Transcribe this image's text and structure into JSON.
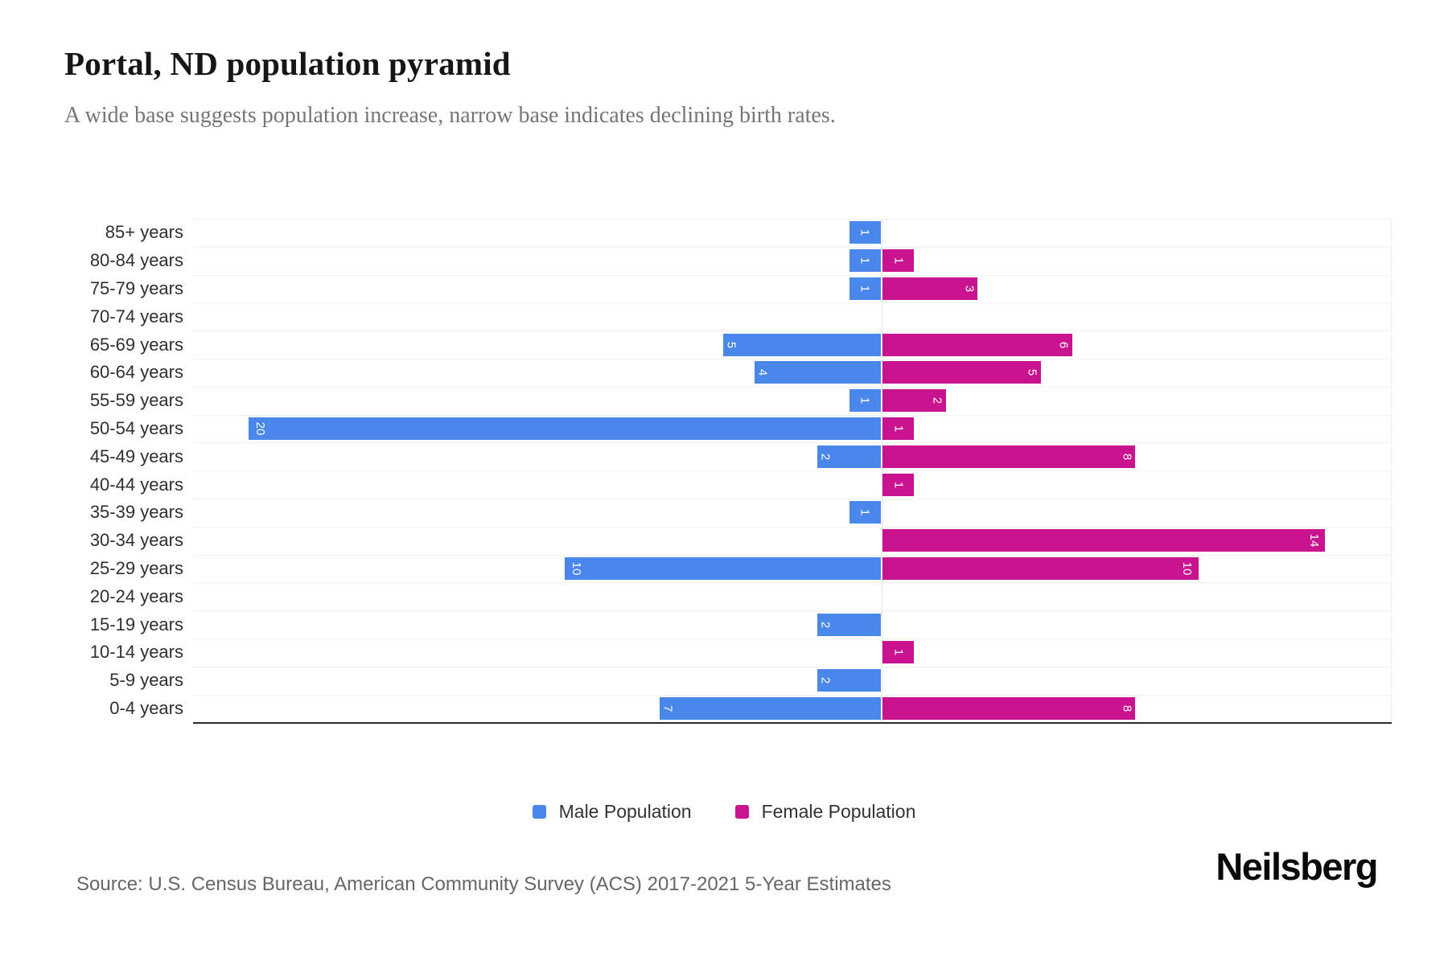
{
  "header": {
    "title": "Portal, ND population pyramid",
    "subtitle": "A wide base suggests population increase, narrow base indicates declining birth rates."
  },
  "chart_data": {
    "type": "bar",
    "variant": "population-pyramid",
    "orientation": "horizontal",
    "title": "Portal, ND population pyramid",
    "categories": [
      "85+ years",
      "80-84 years",
      "75-79 years",
      "70-74 years",
      "65-69 years",
      "60-64 years",
      "55-59 years",
      "50-54 years",
      "45-49 years",
      "40-44 years",
      "35-39 years",
      "30-34 years",
      "25-29 years",
      "20-24 years",
      "15-19 years",
      "10-14 years",
      "5-9 years",
      "0-4 years"
    ],
    "series": [
      {
        "name": "Male Population",
        "side": "left",
        "color": "#4a87eb",
        "values": [
          1,
          1,
          1,
          0,
          5,
          4,
          1,
          20,
          2,
          0,
          1,
          0,
          10,
          0,
          2,
          0,
          2,
          7
        ]
      },
      {
        "name": "Female Population",
        "side": "right",
        "color": "#c9138f",
        "values": [
          0,
          1,
          3,
          0,
          6,
          5,
          2,
          1,
          8,
          1,
          0,
          14,
          10,
          0,
          0,
          1,
          0,
          8
        ]
      }
    ],
    "value_label_color": "#ffffff",
    "value_label_rotation_deg": 90,
    "xlim": [
      -22,
      16
    ],
    "grid": true,
    "legend_position": "bottom"
  },
  "legend": {
    "male_label": "Male Population",
    "female_label": "Female Population"
  },
  "footer": {
    "source": "Source: U.S. Census Bureau, American Community Survey (ACS) 2017-2021 5-Year Estimates",
    "brand": "Neilsberg"
  }
}
